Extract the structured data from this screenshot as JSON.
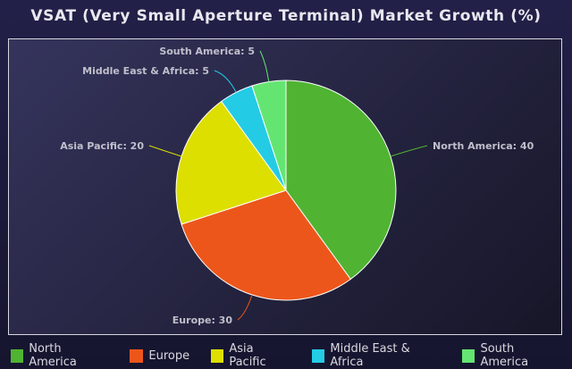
{
  "chart_data": {
    "type": "pie",
    "title": "VSAT (Very Small Aperture Terminal) Market Growth (%)",
    "slices": [
      {
        "label": "North America",
        "value": 40,
        "color": "#50b432"
      },
      {
        "label": "Europe",
        "value": 30,
        "color": "#ed561b"
      },
      {
        "label": "Asia Pacific",
        "value": 20,
        "color": "#dddf00"
      },
      {
        "label": "Middle East & Africa",
        "value": 5,
        "color": "#24cbe5"
      },
      {
        "label": "South America",
        "value": 5,
        "color": "#64e572"
      }
    ],
    "data_labels": [
      "North America: 40",
      "Europe: 30",
      "Asia Pacific: 20",
      "Middle East & Africa: 5",
      "South America: 5"
    ],
    "legend_position": "bottom"
  }
}
